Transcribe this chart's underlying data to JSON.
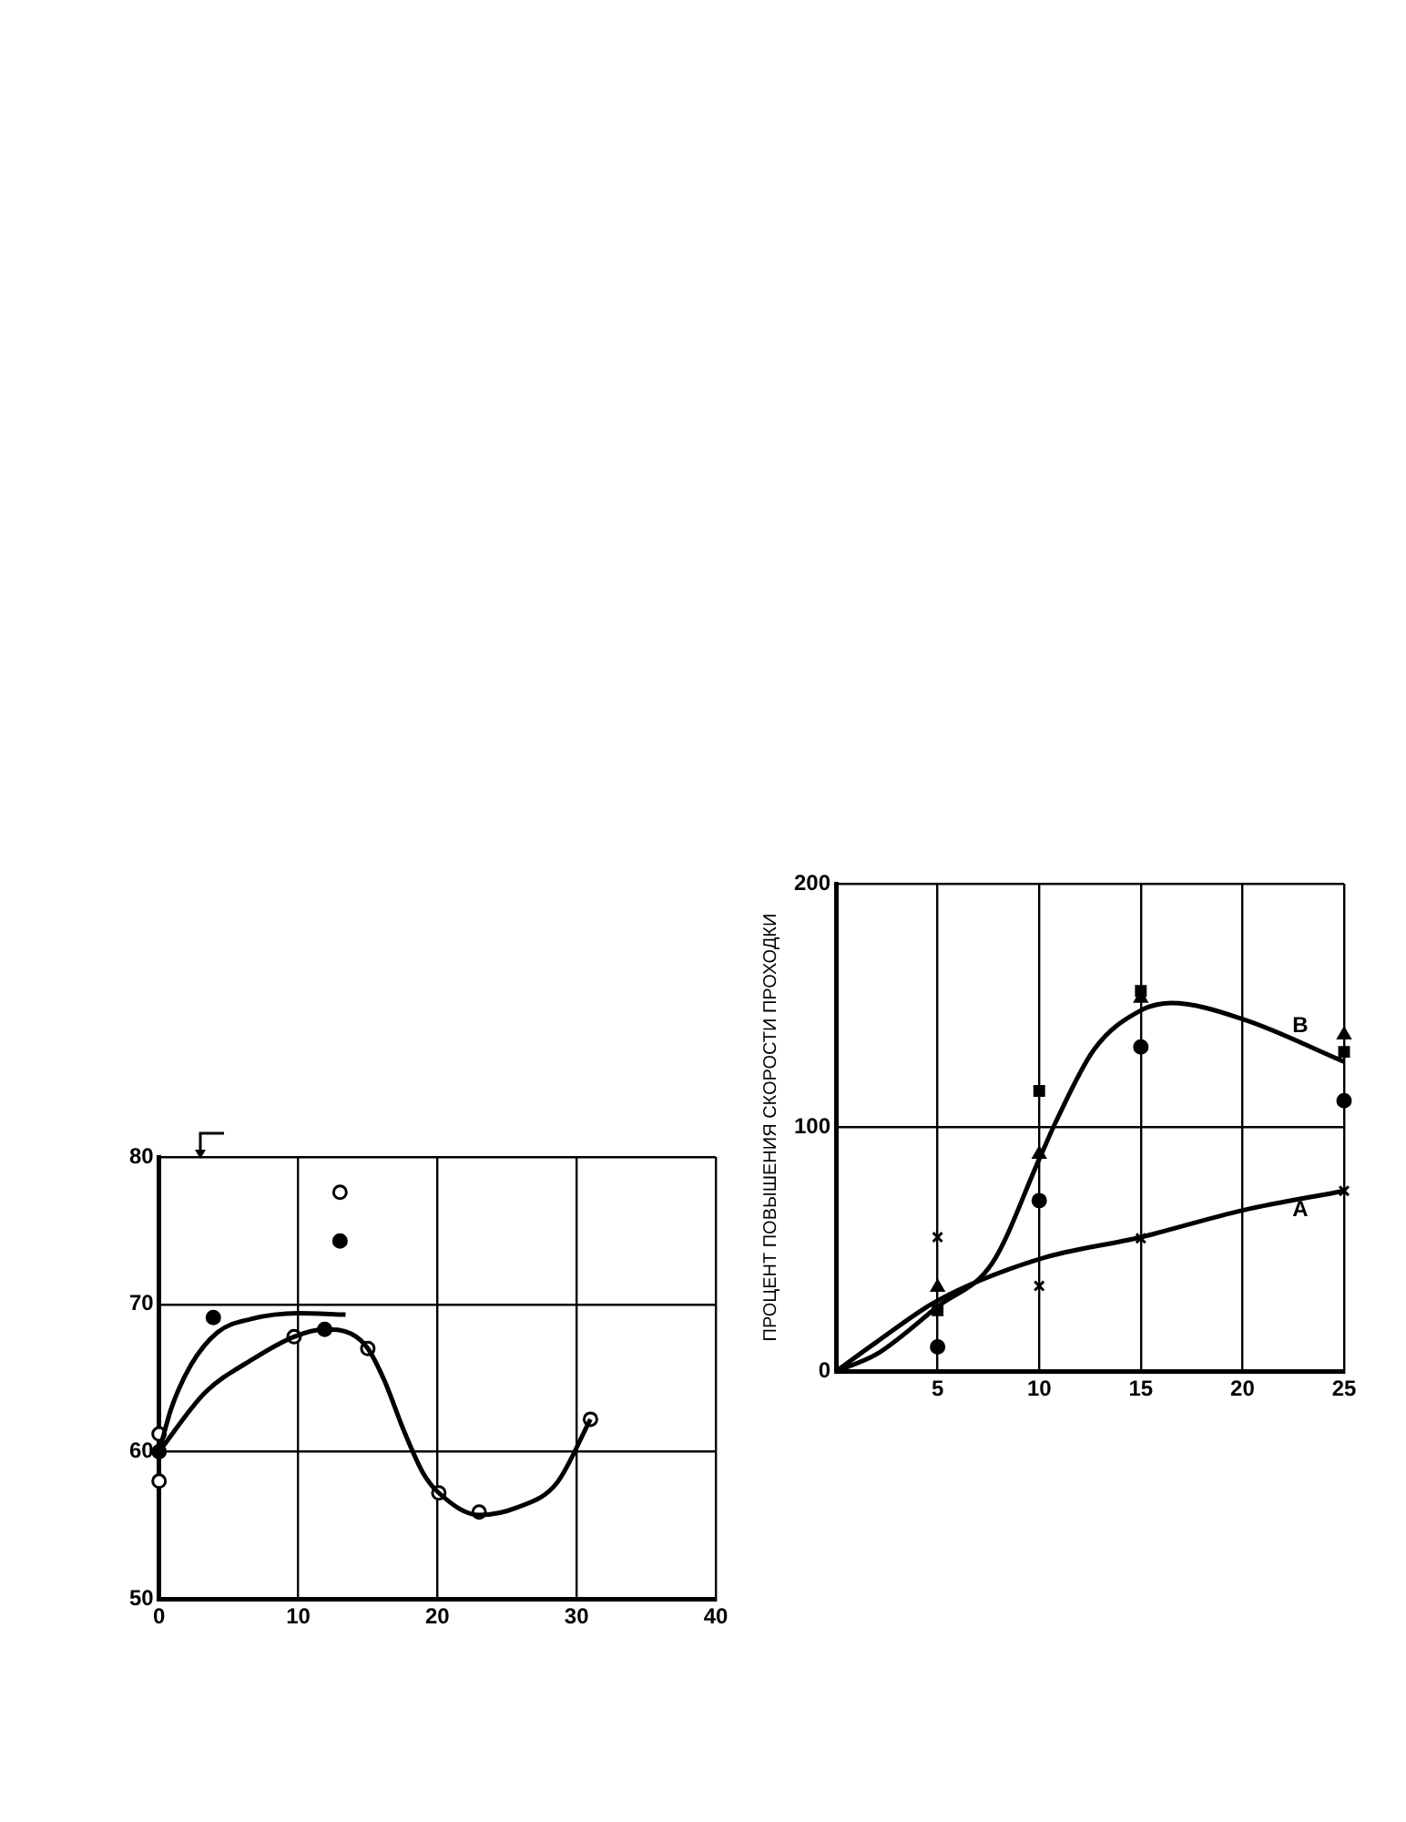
{
  "chart_data": [
    {
      "type": "scatter",
      "xlim": [
        0,
        40
      ],
      "ylim": [
        50,
        80
      ],
      "xticks": [
        0,
        10,
        20,
        30,
        40
      ],
      "yticks": [
        50,
        60,
        70,
        80
      ],
      "grid": true,
      "series": [
        {
          "type": "line",
          "color": "#000000",
          "marker": "none",
          "x": [
            0,
            0.9,
            2.3,
            4.2,
            6.6,
            10,
            13.4
          ],
          "values": [
            60,
            63,
            65.9,
            68.1,
            69,
            69.4,
            69.3
          ]
        },
        {
          "type": "line",
          "color": "#000000",
          "marker": "none",
          "x": [
            0,
            3.3,
            6.6,
            9.7,
            11.9,
            13.8,
            15,
            16.2,
            17.6,
            19,
            20.1,
            23,
            25.7,
            28.6,
            31
          ],
          "values": [
            60,
            64,
            66.2,
            67.8,
            68.3,
            68,
            67,
            64.8,
            61.4,
            58.5,
            57.2,
            55.7,
            56.2,
            57.9,
            62.2
          ]
        },
        {
          "type": "scatter",
          "color": "#ffffff",
          "marker": "circle",
          "x": [
            0,
            0,
            9.7,
            15,
            20.1,
            23,
            31,
            13
          ],
          "values": [
            61.2,
            58,
            67.8,
            67,
            57.2,
            55.9,
            62.2,
            77.6
          ]
        },
        {
          "type": "scatter",
          "color": "#000000",
          "marker": "circle",
          "x": [
            0,
            3.9,
            11.9,
            13
          ],
          "values": [
            60,
            69.1,
            68.3,
            74.3
          ]
        }
      ]
    },
    {
      "type": "scatter",
      "ylabel": "ПРОЦЕНТ ПОВЫШЕНИЯ СКОРОСТИ ПРОХОДКИ",
      "xlim": [
        0,
        25
      ],
      "ylim": [
        0,
        200
      ],
      "xticks": [
        {
          "value": 0,
          "label": null
        },
        5,
        10,
        15,
        20,
        25
      ],
      "yticks": [
        0,
        100,
        200
      ],
      "grid": true,
      "series": [
        {
          "type": "line",
          "name": "A",
          "color": "#000000",
          "marker": "none",
          "x": [
            0,
            2,
            5,
            10,
            15,
            20,
            25
          ],
          "values": [
            0,
            12,
            29,
            46,
            55,
            66,
            74
          ]
        },
        {
          "type": "line",
          "name": "B",
          "color": "#000000",
          "marker": "none",
          "x": [
            0,
            2,
            5,
            7.7,
            10,
            10.8,
            12.7,
            15,
            16.5,
            20,
            25
          ],
          "values": [
            0,
            7,
            26.5,
            44.5,
            87,
            102,
            132,
            148,
            151,
            144.5,
            127
          ]
        },
        {
          "type": "scatter",
          "color": "#000000",
          "marker": "cross",
          "x": [
            5,
            10,
            15,
            25
          ],
          "values": [
            55,
            35,
            54.5,
            74
          ]
        },
        {
          "type": "scatter",
          "color": "#000000",
          "marker": "triangle",
          "x": [
            5,
            10,
            15,
            25
          ],
          "values": [
            34.5,
            89,
            153,
            138
          ]
        },
        {
          "type": "scatter",
          "color": "#000000",
          "marker": "square",
          "x": [
            5,
            10,
            15,
            25
          ],
          "values": [
            25,
            115,
            156,
            131
          ]
        },
        {
          "type": "scatter",
          "color": "#000000",
          "marker": "circle",
          "x": [
            5,
            10,
            15,
            25
          ],
          "values": [
            10,
            70,
            133,
            111
          ]
        }
      ]
    }
  ]
}
